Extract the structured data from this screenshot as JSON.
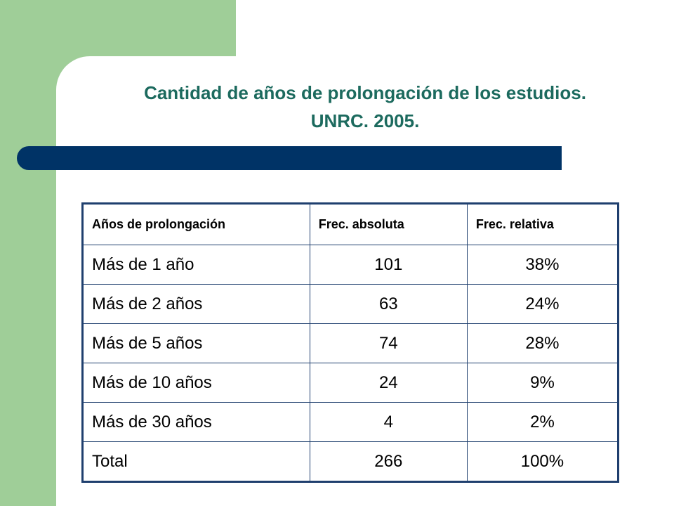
{
  "title": {
    "line1": "Cantidad de años de prolongación de los estudios.",
    "line2": "UNRC. 2005."
  },
  "table": {
    "headers": [
      "Años de prolongación",
      "Frec. absoluta",
      "Frec. relativa"
    ],
    "rows": [
      [
        "Más de 1 año",
        "101",
        "38%"
      ],
      [
        "Más de 2 años",
        "63",
        "24%"
      ],
      [
        "Más de 5 años",
        "74",
        "28%"
      ],
      [
        "Más de 10 años",
        "24",
        "9%"
      ],
      [
        "Más de 30 años",
        "4",
        "2%"
      ],
      [
        "Total",
        "266",
        "100%"
      ]
    ]
  },
  "colors": {
    "green_band": "#9fce98",
    "title_text": "#1c6a5e",
    "title_bar": "#003366",
    "table_border": "#1f3f6e"
  }
}
